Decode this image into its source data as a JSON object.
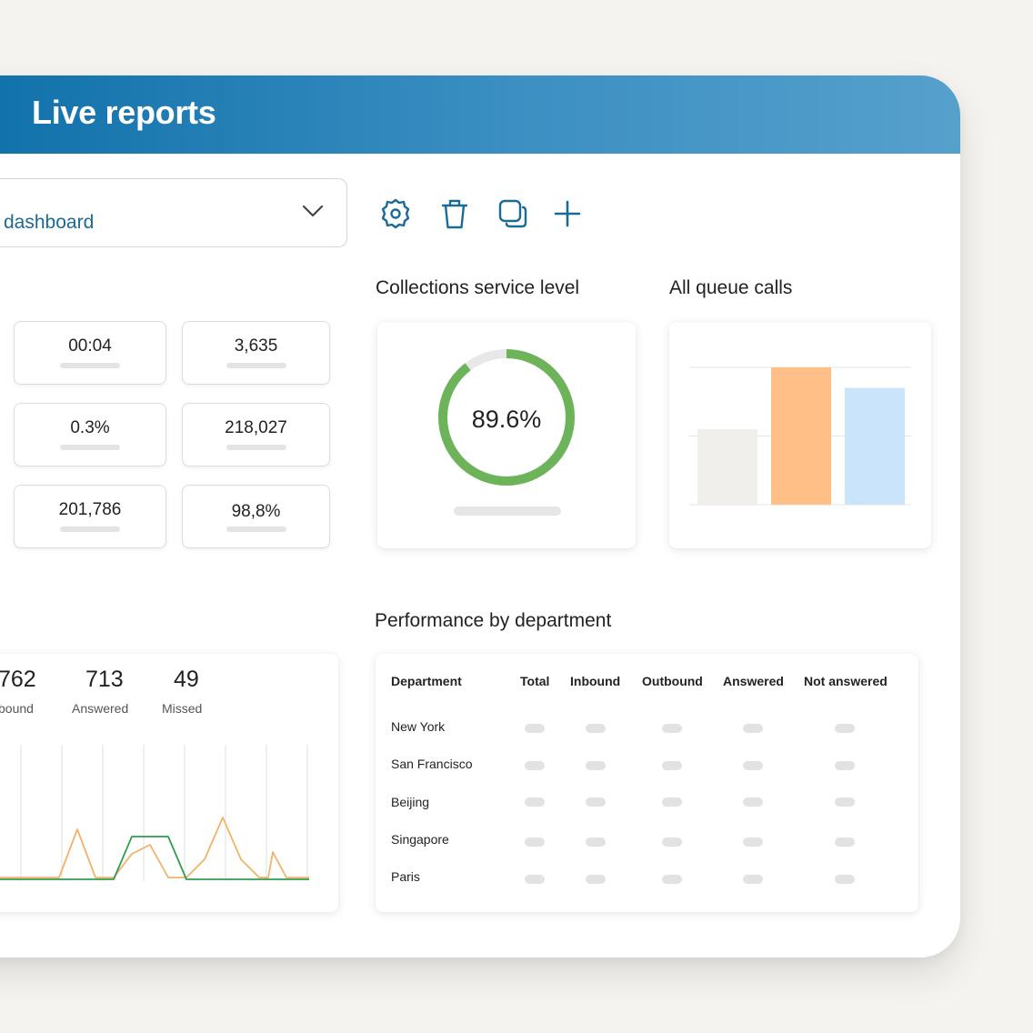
{
  "header": {
    "title": "Live reports"
  },
  "dashboard_select": {
    "value": "dashboard"
  },
  "toolbar": {
    "icons": [
      "gear-icon",
      "trash-icon",
      "copy-icon",
      "plus-icon"
    ]
  },
  "stats": [
    "00:04",
    "3,635",
    "0.3%",
    "218,027",
    "201,786",
    "98,8%"
  ],
  "service_level": {
    "title": "Collections service level",
    "value": "89.6%",
    "percent": 89.6
  },
  "queue_calls": {
    "title": "All queue calls",
    "chart_data": {
      "type": "bar",
      "categories": [
        "",
        "",
        ""
      ],
      "values": [
        55,
        100,
        85
      ],
      "ylim": [
        0,
        100
      ],
      "colors": [
        "#f0efeb",
        "#ffbf86",
        "#c9e4fb"
      ],
      "grid": true
    }
  },
  "calls_summary": [
    {
      "value": "762",
      "label": "bound"
    },
    {
      "value": "713",
      "label": "Answered"
    },
    {
      "value": "49",
      "label": "Missed"
    }
  ],
  "performance": {
    "title": "Performance by department",
    "columns": [
      "Department",
      "Total",
      "Inbound",
      "Outbound",
      "Answered",
      "Not answered"
    ],
    "rows": [
      "New York",
      "San Francisco",
      "Beijing",
      "Singapore",
      "Paris"
    ]
  },
  "colors": {
    "header_start": "#0f70a9",
    "header_end": "#56a0cc",
    "donut_green": "#6cb35a",
    "line_orange": "#f2b26a",
    "line_green": "#2f9f4f"
  }
}
